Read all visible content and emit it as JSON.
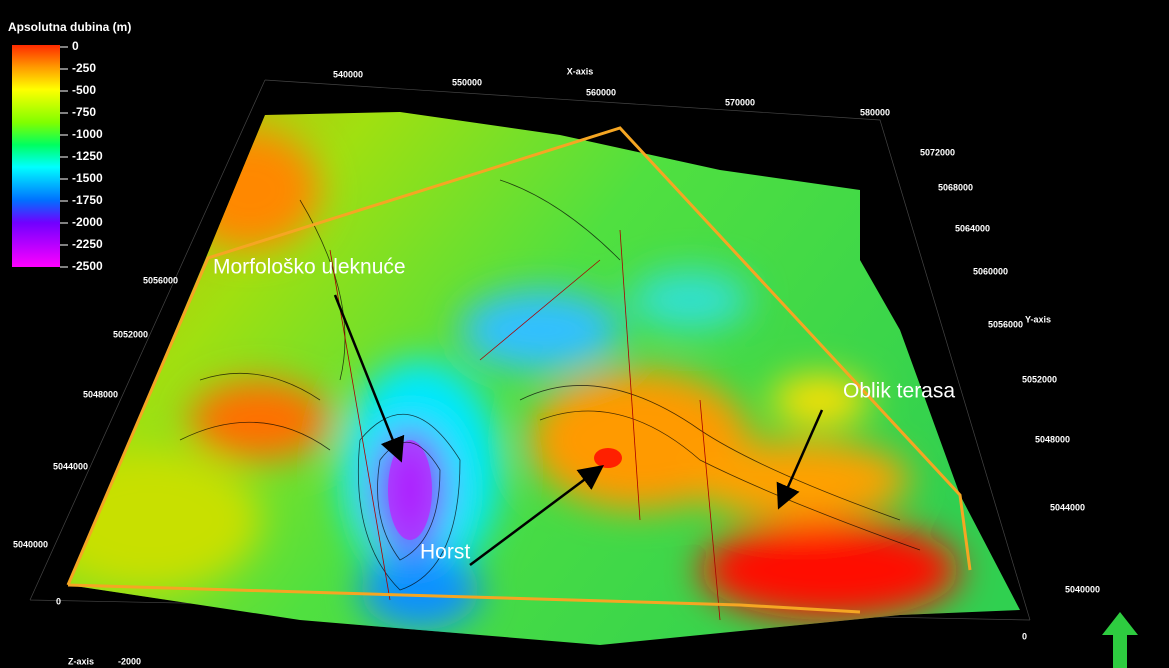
{
  "legend": {
    "title": "Apsolutna dubina (m)",
    "labels": [
      "0",
      "-250",
      "-500",
      "-750",
      "-1000",
      "-1250",
      "-1500",
      "-1750",
      "-2000",
      "-2250",
      "-2500"
    ]
  },
  "axes": {
    "x": {
      "title": "X-axis",
      "ticks": [
        "540000",
        "550000",
        "560000",
        "570000",
        "580000"
      ]
    },
    "y": {
      "title": "Y-axis",
      "right_ticks": [
        "5072000",
        "5068000",
        "5064000",
        "5060000",
        "5056000",
        "5052000",
        "5048000",
        "5044000",
        "5040000"
      ],
      "left_ticks": [
        "5056000",
        "5052000",
        "5048000",
        "5044000",
        "5040000"
      ]
    },
    "z": {
      "title": "Z-axis",
      "ticks": [
        "0",
        "-2000",
        "0"
      ]
    }
  },
  "annotations": [
    "Morfološko uleknuće",
    "Oblik terasa",
    "Horst"
  ]
}
